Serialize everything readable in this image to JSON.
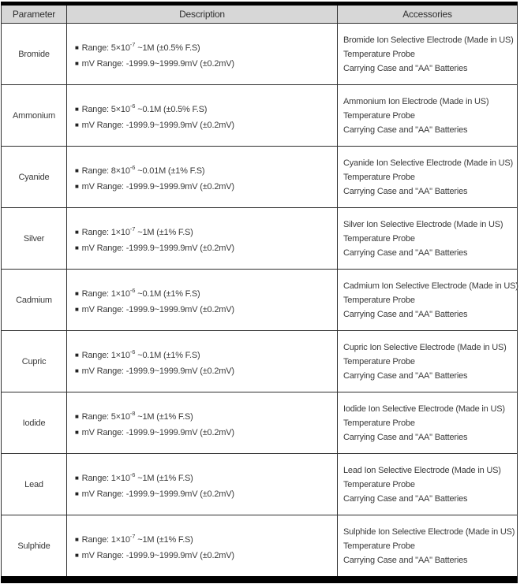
{
  "table": {
    "headers": [
      "Parameter",
      "Description",
      "Accessories"
    ],
    "bullet": "■",
    "rows": [
      {
        "parameter": "Bromide",
        "range_pre": "Range: 5×10",
        "range_exp": "-7",
        "range_post": " ~1M (±0.5% F.S)",
        "mv_range": "mV Range: -1999.9~1999.9mV (±0.2mV)",
        "accessories": [
          "Bromide Ion Selective Electrode (Made in US)",
          "Temperature Probe",
          "Carrying Case and \"AA\" Batteries"
        ]
      },
      {
        "parameter": "Ammonium",
        "range_pre": "Range: 5×10",
        "range_exp": "-6",
        "range_post": " ~0.1M (±0.5% F.S)",
        "mv_range": "mV Range: -1999.9~1999.9mV (±0.2mV)",
        "accessories": [
          "Ammonium Ion Electrode (Made in US)",
          "Temperature Probe",
          "Carrying Case and \"AA\" Batteries"
        ]
      },
      {
        "parameter": "Cyanide",
        "range_pre": "Range: 8×10",
        "range_exp": "-6",
        "range_post": " ~0.01M (±1% F.S)",
        "mv_range": "mV Range: -1999.9~1999.9mV (±0.2mV)",
        "accessories": [
          "Cyanide Ion Selective Electrode (Made in US)",
          "Temperature Probe",
          "Carrying Case and \"AA\" Batteries"
        ]
      },
      {
        "parameter": "Silver",
        "range_pre": "Range: 1×10",
        "range_exp": "-7",
        "range_post": " ~1M (±1% F.S)",
        "mv_range": "mV Range: -1999.9~1999.9mV (±0.2mV)",
        "accessories": [
          "Silver Ion Selective Electrode (Made in US)",
          "Temperature Probe",
          "Carrying Case and \"AA\" Batteries"
        ]
      },
      {
        "parameter": "Cadmium",
        "range_pre": "Range: 1×10",
        "range_exp": "-6",
        "range_post": " ~0.1M (±1% F.S)",
        "mv_range": "mV Range: -1999.9~1999.9mV (±0.2mV)",
        "accessories": [
          "Cadmium Ion Selective Electrode (Made in US)",
          "Temperature Probe",
          "Carrying Case and \"AA\" Batteries"
        ]
      },
      {
        "parameter": "Cupric",
        "range_pre": "Range: 1×10",
        "range_exp": "-6",
        "range_post": " ~0.1M (±1% F.S)",
        "mv_range": "mV Range: -1999.9~1999.9mV (±0.2mV)",
        "accessories": [
          "Cupric Ion Selective Electrode (Made in US)",
          "Temperature Probe",
          "Carrying Case and \"AA\" Batteries"
        ]
      },
      {
        "parameter": "Iodide",
        "range_pre": "Range: 5×10",
        "range_exp": "-8",
        "range_post": " ~1M (±1% F.S)",
        "mv_range": "mV Range: -1999.9~1999.9mV (±0.2mV)",
        "accessories": [
          "Iodide Ion Selective Electrode (Made in US)",
          "Temperature Probe",
          "Carrying Case and \"AA\" Batteries"
        ]
      },
      {
        "parameter": "Lead",
        "range_pre": "Range: 1×10",
        "range_exp": "-6",
        "range_post": " ~1M (±1% F.S)",
        "mv_range": "mV Range: -1999.9~1999.9mV (±0.2mV)",
        "accessories": [
          "Lead Ion Selective Electrode (Made in US)",
          "Temperature Probe",
          "Carrying Case and \"AA\" Batteries"
        ]
      },
      {
        "parameter": "Sulphide",
        "range_pre": "Range: 1×10",
        "range_exp": "-7",
        "range_post": " ~1M (±1% F.S)",
        "mv_range": "mV Range: -1999.9~1999.9mV (±0.2mV)",
        "accessories": [
          "Sulphide Ion Selective Electrode (Made in US)",
          "Temperature Probe",
          "Carrying Case and \"AA\" Batteries"
        ]
      }
    ]
  },
  "colors": {
    "header_bg": "#d7d7d7",
    "grid_border": "#2e2e2e",
    "outer_border": "#000000",
    "text": "#3a3a3a"
  }
}
